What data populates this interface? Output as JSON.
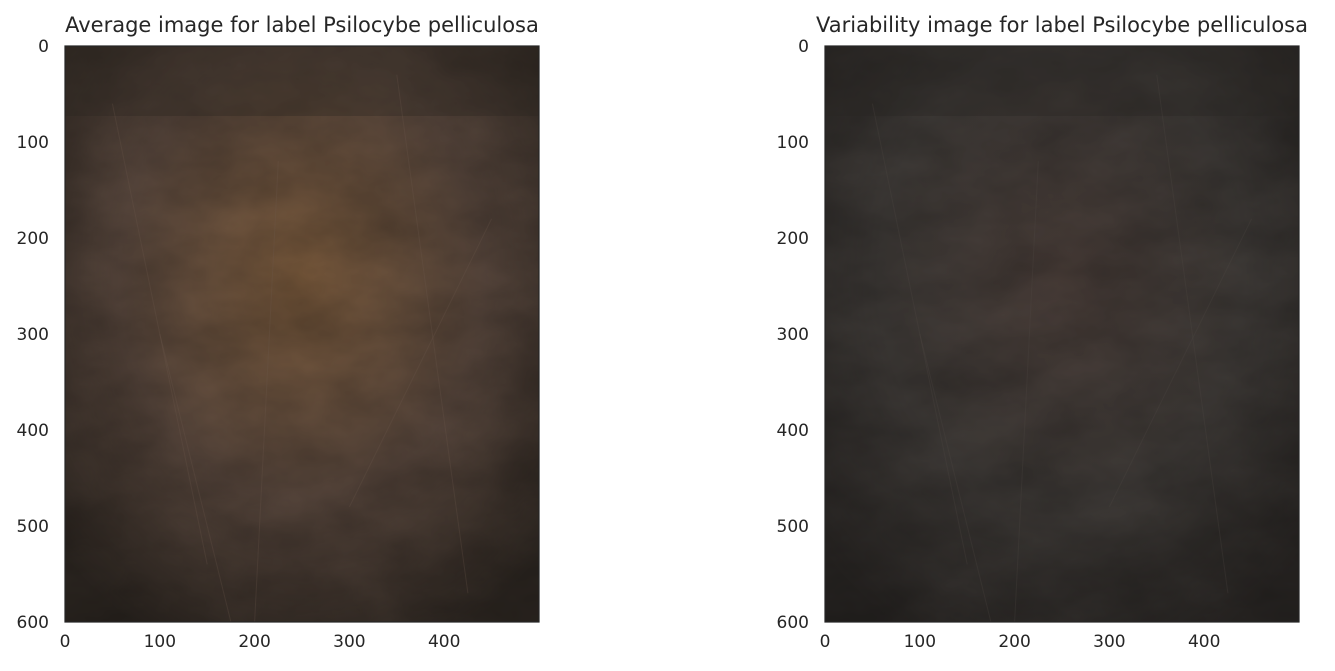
{
  "chart_data": [
    {
      "type": "image",
      "title": "Average image for label Psilocybe pelliculosa",
      "xlim": [
        0,
        500
      ],
      "ylim": [
        600,
        0
      ],
      "xticks": [
        0,
        100,
        200,
        300,
        400
      ],
      "yticks": [
        0,
        100,
        200,
        300,
        400,
        500,
        600
      ],
      "grid": false,
      "palette": {
        "base": "#57463c",
        "dark": "#2b2520",
        "warm": "#7a5a3c",
        "light": "#6e5a4e"
      }
    },
    {
      "type": "image",
      "title": "Variability image for label Psilocybe pelliculosa",
      "xlim": [
        0,
        500
      ],
      "ylim": [
        600,
        0
      ],
      "xticks": [
        0,
        100,
        200,
        300,
        400
      ],
      "yticks": [
        0,
        100,
        200,
        300,
        400,
        500,
        600
      ],
      "grid": false,
      "palette": {
        "base": "#3e3a37",
        "dark": "#272422",
        "warm": "#4a3e39",
        "light": "#524b46"
      }
    }
  ]
}
